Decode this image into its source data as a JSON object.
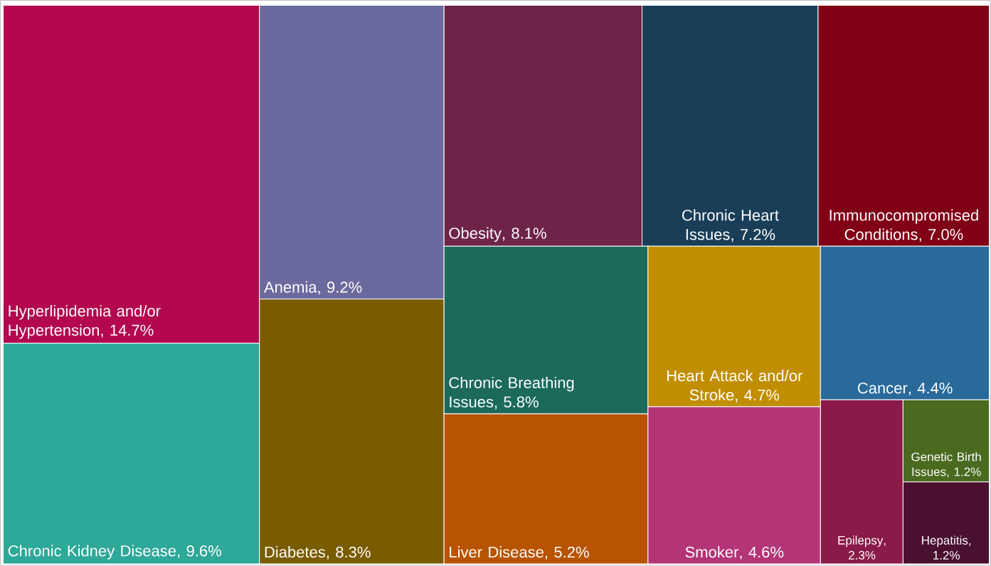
{
  "chart_data": {
    "type": "other",
    "categories": [
      "Hyperlipidemia and/or Hypertension",
      "Chronic Kidney Disease",
      "Anemia",
      "Diabetes",
      "Obesity",
      "Chronic Heart Issues",
      "Immunocompromised Conditions",
      "Chronic Breathing Issues",
      "Liver Disease",
      "Heart Attack and/or Stroke",
      "Smoker",
      "Cancer",
      "Epilepsy",
      "Genetic Birth Issues",
      "Hepatitis"
    ],
    "values": [
      14.7,
      9.6,
      9.2,
      8.3,
      8.1,
      7.2,
      7.0,
      5.8,
      5.2,
      4.7,
      4.6,
      4.4,
      2.3,
      1.2,
      1.2
    ],
    "value_labels": [
      ", 14.7%",
      ", 9.6%",
      ", 9.2%",
      ", 8.3%",
      ", 8.1%",
      ", 7.2%",
      ", 7.0%",
      ", 5.8%",
      ", 5.2%",
      ", 4.7%",
      ", 4.6%",
      ", 4.4%",
      ", 2.3%",
      ", 1.2%",
      ", 1.2%"
    ],
    "colors": [
      "#b3074f",
      "#2ea898",
      "#6a6a9e",
      "#7a5c00",
      "#6e2448",
      "#1a3e58",
      "#800016",
      "#1b6a5a",
      "#b85400",
      "#c08e00",
      "#b43478",
      "#2a6a9a",
      "#8a1a48",
      "#4a6a20",
      "#4a1030"
    ]
  }
}
